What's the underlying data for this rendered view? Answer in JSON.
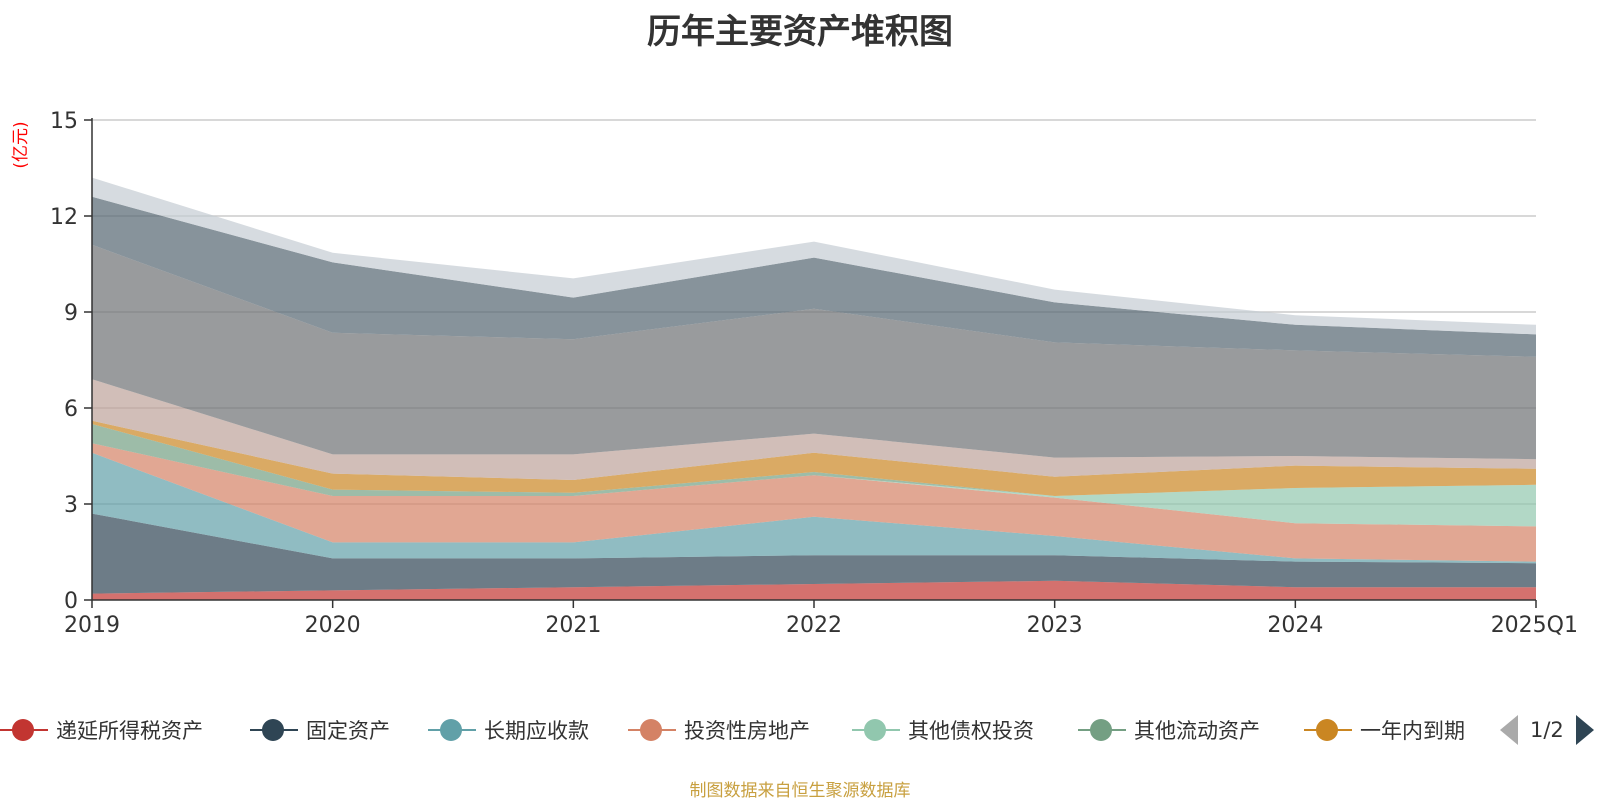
{
  "chart_data": {
    "type": "area",
    "stacked": true,
    "title": "历年主要资产堆积图",
    "ylabel": "(亿元)",
    "categories": [
      "2019",
      "2020",
      "2021",
      "2022",
      "2023",
      "2024",
      "2025Q1"
    ],
    "ylim": [
      0,
      15
    ],
    "yticks": [
      0,
      3,
      6,
      9,
      12,
      15
    ],
    "grid": true,
    "legend_position": "bottom",
    "series": [
      {
        "name": "递延所得税资产",
        "color": "#c23531",
        "values": [
          0.2,
          0.3,
          0.4,
          0.5,
          0.6,
          0.4,
          0.4
        ]
      },
      {
        "name": "固定资产",
        "color": "#2f4554",
        "values": [
          2.5,
          1.0,
          0.9,
          0.9,
          0.8,
          0.8,
          0.75
        ]
      },
      {
        "name": "长期应收款",
        "color": "#61a0a8",
        "values": [
          1.9,
          0.5,
          0.5,
          1.2,
          0.6,
          0.1,
          0.05
        ]
      },
      {
        "name": "投资性房地产",
        "color": "#d48265",
        "values": [
          0.3,
          1.45,
          1.45,
          1.3,
          1.2,
          1.1,
          1.1
        ]
      },
      {
        "name": "其他债权投资",
        "color": "#91c7ae",
        "values": [
          0.0,
          0.0,
          0.0,
          0.0,
          0.05,
          1.1,
          1.3
        ]
      },
      {
        "name": "其他流动资产",
        "color": "#749f83",
        "values": [
          0.6,
          0.2,
          0.1,
          0.1,
          0.0,
          0.0,
          0.0
        ]
      },
      {
        "name": "一年内到期",
        "color": "#ca8622",
        "values": [
          0.1,
          0.5,
          0.4,
          0.6,
          0.6,
          0.7,
          0.5
        ]
      },
      {
        "color": "#bda29a",
        "values": [
          1.3,
          0.6,
          0.8,
          0.6,
          0.6,
          0.3,
          0.3
        ]
      },
      {
        "color": "#6e7074",
        "values": [
          4.2,
          3.8,
          3.6,
          3.9,
          3.6,
          3.3,
          3.2
        ]
      },
      {
        "color": "#546570",
        "values": [
          1.5,
          2.2,
          1.3,
          1.6,
          1.25,
          0.8,
          0.7
        ]
      },
      {
        "color": "#c4ccd3",
        "values": [
          0.6,
          0.3,
          0.6,
          0.5,
          0.4,
          0.3,
          0.3
        ]
      }
    ]
  },
  "legend": {
    "page_indicator": "1/2"
  },
  "source_note": "制图数据来自恒生聚源数据库"
}
